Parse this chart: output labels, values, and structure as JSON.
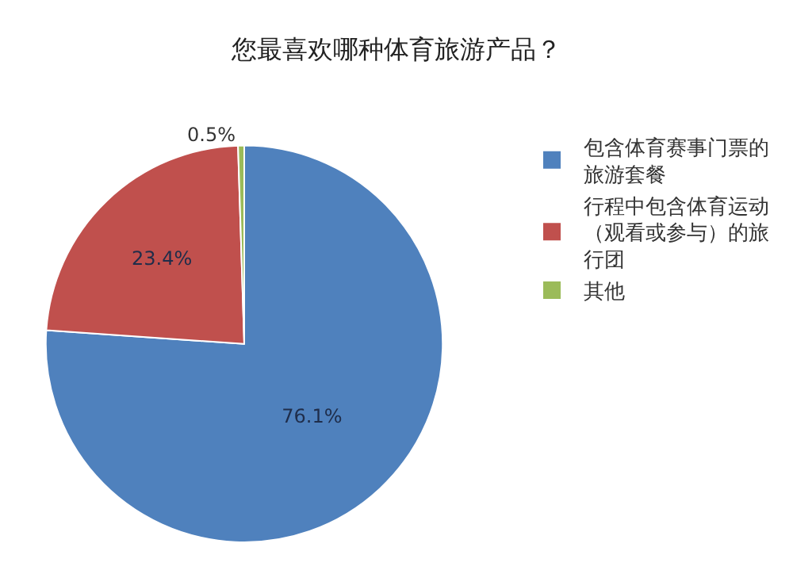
{
  "chart_data": {
    "type": "pie",
    "title": "您最喜欢哪种体育旅游产品？",
    "categories": [
      "包含体育赛事门票的旅游套餐",
      "行程中包含体育运动（观看或参与）的旅行团",
      "其他"
    ],
    "values": [
      76.1,
      23.4,
      0.5
    ],
    "colors": [
      "#4f81bd",
      "#c0504d",
      "#9bbb59"
    ],
    "value_labels": [
      "76.1%",
      "23.4%",
      "0.5%"
    ],
    "legend": "right"
  }
}
